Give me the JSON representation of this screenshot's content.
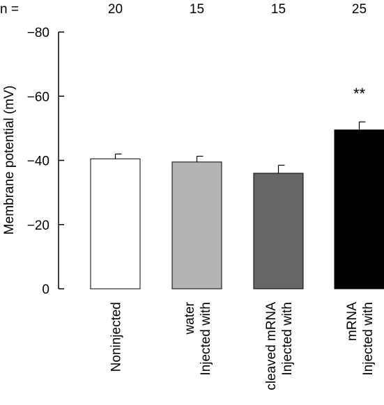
{
  "chart_data": {
    "type": "bar",
    "n_label": "n =",
    "n_values": [
      "20",
      "15",
      "15",
      "25"
    ],
    "categories": [
      [
        "Noninjected"
      ],
      [
        "Injected with",
        "water"
      ],
      [
        "Injected with",
        "cleaved mRNA"
      ],
      [
        "Injected with",
        "mRNA"
      ]
    ],
    "values": [
      -40.5,
      -39.5,
      -36,
      -49.5
    ],
    "errors": [
      1.5,
      1.8,
      2.5,
      2.5
    ],
    "bar_colors": [
      "#ffffff",
      "#b4b4b4",
      "#666666",
      "#000000"
    ],
    "annotations": [
      "",
      "",
      "",
      "**"
    ],
    "ylabel": "Membrane potential (mV)",
    "yticks": [
      0,
      -20,
      -40,
      -60,
      -80
    ],
    "ytick_labels": [
      "0",
      "−20",
      "−40",
      "−60",
      "−80"
    ],
    "ylim": [
      0,
      -80
    ]
  }
}
